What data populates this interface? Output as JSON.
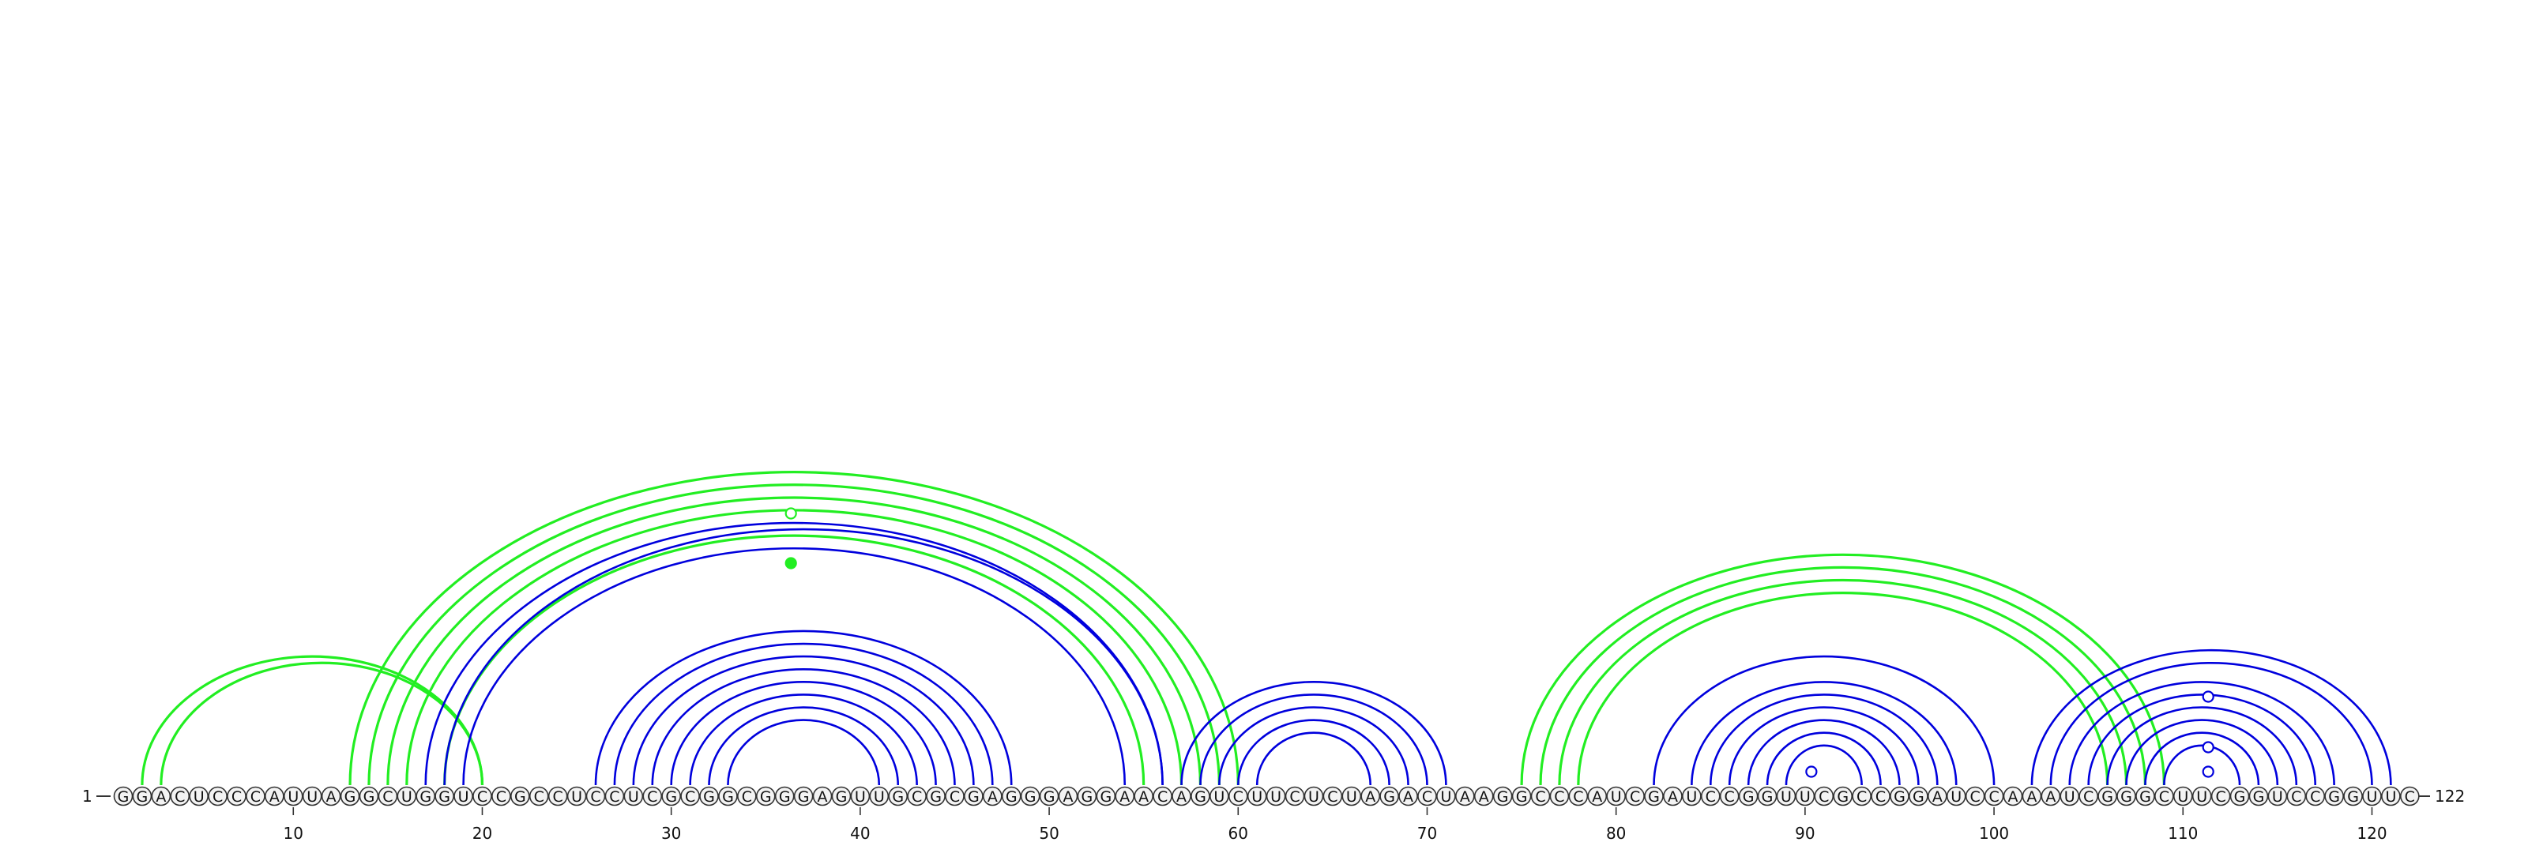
{
  "sequence": {
    "start_label": "1",
    "end_label": "122",
    "bases": "GGACUCCCAUUAGGCUGGUCCGCCUCCUCGCGGCGGGAGUUGCGCGAGGGAGGAACAGUCUUCUCUAGACUAAGGCCCAUCGAUCCGGUUCGCCGGAUCCAAAUCGGGCUUCGGUCCGGUUC"
  },
  "ticks": [
    10,
    20,
    30,
    40,
    50,
    60,
    70,
    80,
    90,
    100,
    110,
    120
  ],
  "colors": {
    "blue": "#0000dd",
    "green": "#22ee22",
    "nucleotide_fill": "#f3f3f3",
    "nucleotide_stroke": "#333333"
  },
  "arcs": {
    "green": [
      [
        2,
        20
      ],
      [
        3,
        20
      ],
      [
        13,
        60
      ],
      [
        14,
        59
      ],
      [
        15,
        58
      ],
      [
        16,
        57
      ],
      [
        18,
        55
      ],
      [
        75,
        109
      ],
      [
        76,
        108
      ],
      [
        77,
        107
      ],
      [
        78,
        106
      ]
    ],
    "blue": [
      [
        17,
        56
      ],
      [
        18,
        56
      ],
      [
        19,
        54
      ],
      [
        26,
        48
      ],
      [
        27,
        47
      ],
      [
        28,
        46
      ],
      [
        29,
        45
      ],
      [
        30,
        44
      ],
      [
        31,
        43
      ],
      [
        32,
        42
      ],
      [
        33,
        41
      ],
      [
        57,
        71
      ],
      [
        58,
        70
      ],
      [
        59,
        69
      ],
      [
        60,
        68
      ],
      [
        61,
        67
      ],
      [
        82,
        100
      ],
      [
        84,
        98
      ],
      [
        85,
        97
      ],
      [
        86,
        96
      ],
      [
        87,
        95
      ],
      [
        88,
        94
      ],
      [
        89,
        93
      ],
      [
        102,
        121
      ],
      [
        103,
        120
      ],
      [
        104,
        118
      ],
      [
        105,
        117
      ],
      [
        106,
        116
      ],
      [
        107,
        115
      ],
      [
        108,
        114
      ],
      [
        109,
        113
      ]
    ]
  },
  "markers": {
    "open_green": [
      36
    ],
    "filled_green": [
      36
    ],
    "open_blue": [
      90,
      111,
      111,
      111
    ]
  }
}
